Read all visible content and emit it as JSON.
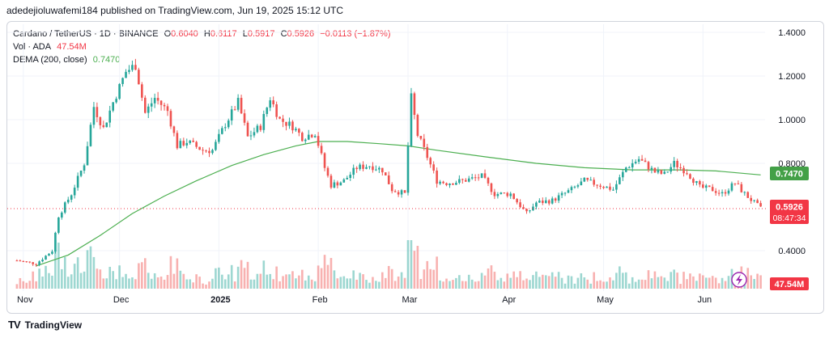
{
  "header": {
    "published": "adedejioluwafemi184 published on TradingView.com, Jun 19, 2025 15:12 UTC"
  },
  "legend": {
    "symbol": "Cardano / TetherUS · 1D · BINANCE",
    "o_label": "O",
    "o": "0.6040",
    "h_label": "H",
    "h": "0.6117",
    "l_label": "L",
    "l": "0.5917",
    "c_label": "C",
    "c": "0.5926",
    "change": "−0.0113 (−1.87%)",
    "vol_label": "Vol · ADA",
    "vol": "47.54M",
    "dema_label": "DEMA (200, close)",
    "dema": "0.7470"
  },
  "footer": {
    "brand": "TradingView"
  },
  "colors": {
    "up": "#26a69a",
    "down": "#ef5350",
    "dema": "#4caf50",
    "price_tag": "#f23645",
    "dema_tag": "#43a047"
  },
  "chart_data": {
    "type": "candlestick",
    "y_axis_ticks": [
      "1.4000",
      "1.2000",
      "1.0000",
      "0.8000",
      "0.4000"
    ],
    "ylim": [
      0.2,
      1.45
    ],
    "x_axis_ticks": [
      "Nov",
      "Dec",
      "2025",
      "Feb",
      "Mar",
      "Apr",
      "May",
      "Jun"
    ],
    "price_tag": {
      "value": "0.5926",
      "countdown": "08:47:34"
    },
    "dema_tag": "0.7470",
    "volume_tag": "47.54M",
    "close_path": [
      [
        "2024-10-30",
        0.355
      ],
      [
        "2024-11-05",
        0.34
      ],
      [
        "2024-11-10",
        0.4
      ],
      [
        "2024-11-12",
        0.56
      ],
      [
        "2024-11-16",
        0.66
      ],
      [
        "2024-11-20",
        0.8
      ],
      [
        "2024-11-23",
        1.06
      ],
      [
        "2024-11-26",
        0.96
      ],
      [
        "2024-11-29",
        1.08
      ],
      [
        "2024-12-03",
        1.22
      ],
      [
        "2024-12-06",
        1.25
      ],
      [
        "2024-12-09",
        1.03
      ],
      [
        "2024-12-12",
        1.1
      ],
      [
        "2024-12-16",
        1.04
      ],
      [
        "2024-12-19",
        0.88
      ],
      [
        "2024-12-22",
        0.9
      ],
      [
        "2024-12-27",
        0.86
      ],
      [
        "2024-12-30",
        0.86
      ],
      [
        "2025-01-03",
        0.98
      ],
      [
        "2025-01-07",
        1.08
      ],
      [
        "2025-01-10",
        0.92
      ],
      [
        "2025-01-14",
        0.97
      ],
      [
        "2025-01-17",
        1.1
      ],
      [
        "2025-01-20",
        1.0
      ],
      [
        "2025-01-24",
        0.97
      ],
      [
        "2025-01-27",
        0.92
      ],
      [
        "2025-01-31",
        0.94
      ],
      [
        "2025-02-03",
        0.78
      ],
      [
        "2025-02-05",
        0.7
      ],
      [
        "2025-02-09",
        0.72
      ],
      [
        "2025-02-13",
        0.78
      ],
      [
        "2025-02-17",
        0.79
      ],
      [
        "2025-02-21",
        0.77
      ],
      [
        "2025-02-24",
        0.68
      ],
      [
        "2025-02-28",
        0.66
      ],
      [
        "2025-03-02",
        1.1
      ],
      [
        "2025-03-04",
        0.93
      ],
      [
        "2025-03-07",
        0.83
      ],
      [
        "2025-03-10",
        0.72
      ],
      [
        "2025-03-13",
        0.71
      ],
      [
        "2025-03-18",
        0.72
      ],
      [
        "2025-03-24",
        0.74
      ],
      [
        "2025-03-28",
        0.66
      ],
      [
        "2025-04-02",
        0.66
      ],
      [
        "2025-04-07",
        0.57
      ],
      [
        "2025-04-10",
        0.62
      ],
      [
        "2025-04-15",
        0.63
      ],
      [
        "2025-04-21",
        0.68
      ],
      [
        "2025-04-25",
        0.72
      ],
      [
        "2025-04-30",
        0.7
      ],
      [
        "2025-05-04",
        0.68
      ],
      [
        "2025-05-08",
        0.78
      ],
      [
        "2025-05-12",
        0.82
      ],
      [
        "2025-05-17",
        0.76
      ],
      [
        "2025-05-20",
        0.75
      ],
      [
        "2025-05-23",
        0.8
      ],
      [
        "2025-05-27",
        0.76
      ],
      [
        "2025-05-31",
        0.69
      ],
      [
        "2025-06-04",
        0.68
      ],
      [
        "2025-06-07",
        0.66
      ],
      [
        "2025-06-11",
        0.71
      ],
      [
        "2025-06-14",
        0.66
      ],
      [
        "2025-06-17",
        0.62
      ],
      [
        "2025-06-19",
        0.5926
      ]
    ],
    "dema_path": [
      [
        "2024-11-05",
        0.33
      ],
      [
        "2024-11-15",
        0.38
      ],
      [
        "2024-11-25",
        0.47
      ],
      [
        "2024-12-05",
        0.57
      ],
      [
        "2024-12-15",
        0.65
      ],
      [
        "2024-12-25",
        0.72
      ],
      [
        "2025-01-05",
        0.79
      ],
      [
        "2025-01-15",
        0.84
      ],
      [
        "2025-01-25",
        0.88
      ],
      [
        "2025-02-01",
        0.9
      ],
      [
        "2025-02-10",
        0.9
      ],
      [
        "2025-02-20",
        0.89
      ],
      [
        "2025-03-01",
        0.88
      ],
      [
        "2025-03-10",
        0.86
      ],
      [
        "2025-03-25",
        0.83
      ],
      [
        "2025-04-10",
        0.8
      ],
      [
        "2025-04-25",
        0.78
      ],
      [
        "2025-05-10",
        0.77
      ],
      [
        "2025-05-25",
        0.77
      ],
      [
        "2025-06-05",
        0.765
      ],
      [
        "2025-06-19",
        0.747
      ]
    ]
  }
}
